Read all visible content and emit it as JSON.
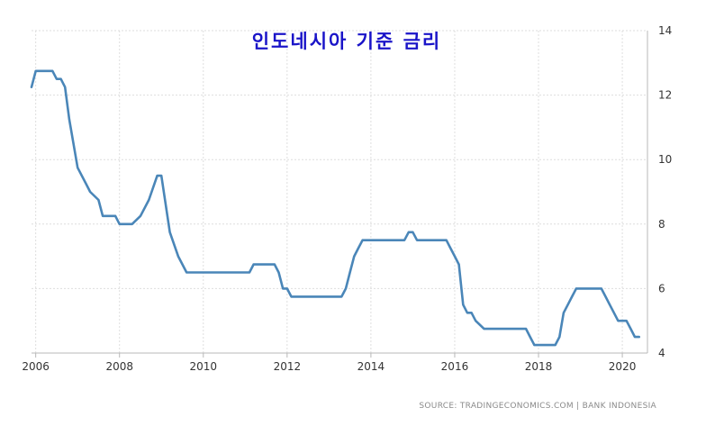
{
  "chart_data": {
    "type": "line",
    "title": "인도네시아 기준 금리",
    "source": "SOURCE: TRADINGECONOMICS.COM | BANK INDONESIA",
    "xlim": [
      2005.9,
      2020.6
    ],
    "ylim": [
      4,
      14
    ],
    "x_ticks": [
      2006,
      2008,
      2010,
      2012,
      2014,
      2016,
      2018,
      2020
    ],
    "y_ticks": [
      4,
      6,
      8,
      10,
      12,
      14
    ],
    "grid": true,
    "line_color": "#4a86b8",
    "title_color": "#1a14c8",
    "series": [
      {
        "x": [
          2005.9,
          2006.0,
          2006.4,
          2006.5,
          2006.6,
          2006.7,
          2006.8,
          2007.0,
          2007.2,
          2007.3,
          2007.5,
          2007.6,
          2007.9,
          2008.0,
          2008.3,
          2008.5,
          2008.7,
          2008.9,
          2009.0,
          2009.2,
          2009.4,
          2009.6,
          2009.7,
          2010.5,
          2011.0,
          2011.1,
          2011.2,
          2011.7,
          2011.8,
          2011.9,
          2012.0,
          2012.1,
          2012.2,
          2013.3,
          2013.4,
          2013.5,
          2013.6,
          2013.7,
          2013.8,
          2013.9,
          2014.0,
          2014.5,
          2014.8,
          2014.9,
          2015.0,
          2015.1,
          2015.2,
          2015.8,
          2015.9,
          2016.0,
          2016.1,
          2016.2,
          2016.3,
          2016.4,
          2016.5,
          2016.7,
          2016.8,
          2017.0,
          2017.7,
          2017.8,
          2017.9,
          2018.3,
          2018.4,
          2018.5,
          2018.6,
          2018.7,
          2018.8,
          2018.9,
          2019.0,
          2019.5,
          2019.6,
          2019.7,
          2019.8,
          2019.9,
          2020.0,
          2020.1,
          2020.2,
          2020.3,
          2020.4
        ],
        "y": [
          12.25,
          12.75,
          12.75,
          12.5,
          12.5,
          12.25,
          11.25,
          9.75,
          9.25,
          9.0,
          8.75,
          8.25,
          8.25,
          8.0,
          8.0,
          8.25,
          8.75,
          9.5,
          9.5,
          7.75,
          7.0,
          6.5,
          6.5,
          6.5,
          6.5,
          6.5,
          6.75,
          6.75,
          6.5,
          6.0,
          6.0,
          5.75,
          5.75,
          5.75,
          6.0,
          6.5,
          7.0,
          7.25,
          7.5,
          7.5,
          7.5,
          7.5,
          7.5,
          7.75,
          7.75,
          7.5,
          7.5,
          7.5,
          7.25,
          7.0,
          6.75,
          5.5,
          5.25,
          5.25,
          5.0,
          4.75,
          4.75,
          4.75,
          4.75,
          4.5,
          4.25,
          4.25,
          4.25,
          4.5,
          5.25,
          5.5,
          5.75,
          6.0,
          6.0,
          6.0,
          5.75,
          5.5,
          5.25,
          5.0,
          5.0,
          5.0,
          4.75,
          4.5,
          4.5
        ]
      }
    ]
  }
}
